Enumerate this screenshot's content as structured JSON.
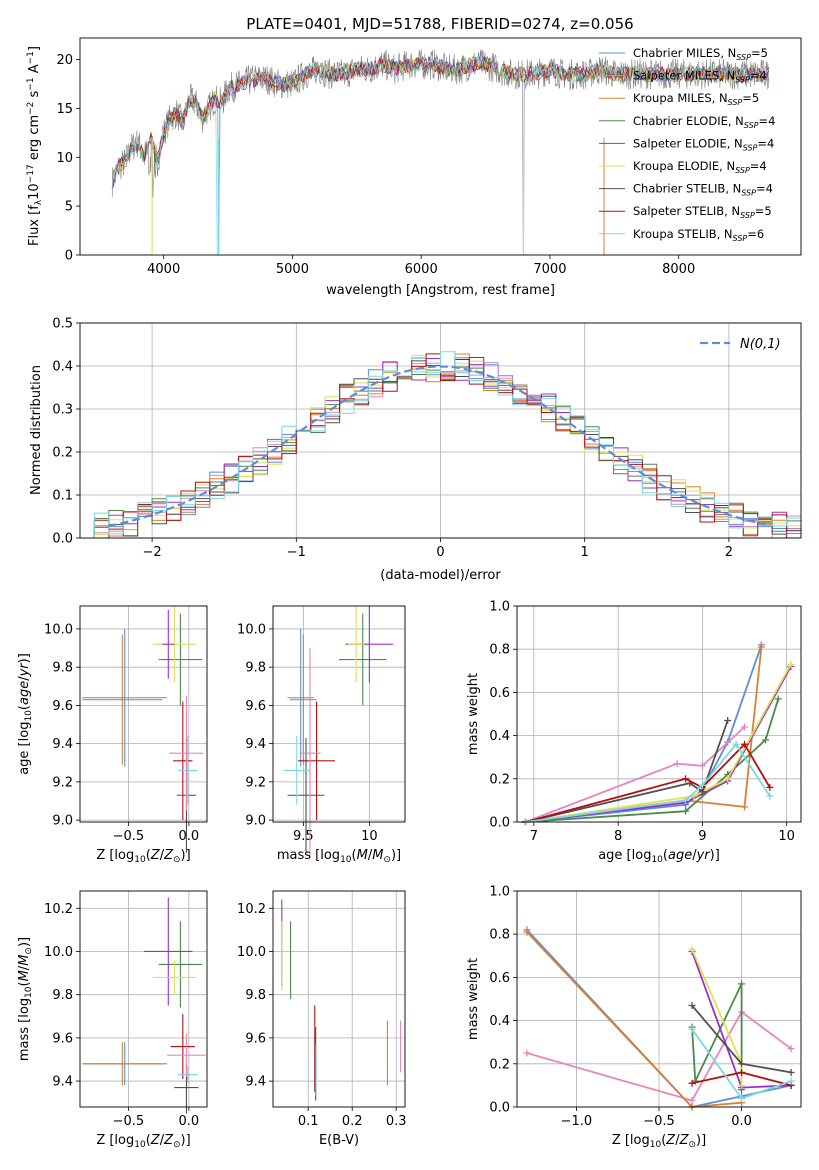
{
  "title": "PLATE=0401, MJD=51788, FIBERID=0274, z=0.056",
  "legend": [
    {
      "label": "Chabrier MILES, N",
      "sub": "SSP",
      "tail": "=5",
      "color": "#5a8fd8"
    },
    {
      "label": "Salpeter MILES, N",
      "sub": "SSP",
      "tail": "=4",
      "color": "#e387bf"
    },
    {
      "label": "Kroupa MILES, N",
      "sub": "SSP",
      "tail": "=5",
      "color": "#d98032"
    },
    {
      "label": "Chabrier ELODIE, N",
      "sub": "SSP",
      "tail": "=4",
      "color": "#4b8a4b"
    },
    {
      "label": "Salpeter ELODIE, N",
      "sub": "SSP",
      "tail": "=4",
      "color": "#9b30c8"
    },
    {
      "label": "Kroupa ELODIE, N",
      "sub": "SSP",
      "tail": "=4",
      "color": "#e0e050"
    },
    {
      "label": "Chabrier STELIB, N",
      "sub": "SSP",
      "tail": "=4",
      "color": "#505050"
    },
    {
      "label": "Salpeter STELIB, N",
      "sub": "SSP",
      "tail": "=5",
      "color": "#b01010"
    },
    {
      "label": "Kroupa STELIB, N",
      "sub": "SSP",
      "tail": "=6",
      "color": "#7ad8e0"
    }
  ],
  "chart_data": [
    {
      "id": "spectrum",
      "type": "line",
      "xlabel": "wavelength [Angstrom, rest frame]",
      "ylabel_parts": [
        "Flux [f",
        "λ",
        "10",
        "−17",
        " erg cm",
        "−2",
        " s",
        "−1",
        " A",
        "−1",
        "]"
      ],
      "xlim": [
        3350,
        8950
      ],
      "ylim": [
        0,
        22.2
      ],
      "xticks": [
        4000,
        5000,
        6000,
        7000,
        8000
      ],
      "yticks": [
        0,
        5,
        10,
        15,
        20
      ],
      "data_color": "#808080",
      "x": [
        3600,
        3650,
        3700,
        3750,
        3800,
        3850,
        3900,
        3950,
        4000,
        4050,
        4100,
        4150,
        4200,
        4250,
        4300,
        4350,
        4400,
        4450,
        4500,
        4600,
        4700,
        4800,
        4900,
        5000,
        5100,
        5200,
        5300,
        5400,
        5500,
        5600,
        5700,
        5800,
        5900,
        6000,
        6100,
        6200,
        6300,
        6400,
        6500,
        6600,
        6700,
        6800,
        6900,
        7000,
        7100,
        7200,
        7300,
        7400,
        7500,
        7600,
        7700,
        7800,
        7900,
        8000,
        8100,
        8200,
        8300,
        8400,
        8500,
        8600,
        8700
      ],
      "y": [
        7.5,
        9,
        9.5,
        11,
        11.5,
        10,
        12,
        9.5,
        12.5,
        14,
        14.5,
        13.5,
        16,
        15.5,
        14,
        15,
        16,
        15.5,
        17,
        17.5,
        18,
        18,
        17.5,
        17.5,
        18.5,
        19,
        18.5,
        18.5,
        19,
        19,
        19.5,
        19,
        19.5,
        19.5,
        19.5,
        19,
        19,
        19.5,
        19.5,
        19,
        18.5,
        18.5,
        18.5,
        19,
        18.5,
        18.5,
        18.5,
        19,
        18.5,
        18.5,
        18.5,
        18.5,
        18.5,
        18.5,
        18.5,
        18.5,
        18.5,
        18.5,
        18.5,
        18.5,
        18.5
      ]
    },
    {
      "id": "residual-histogram",
      "type": "bar",
      "xlabel": "(data-model)/error",
      "ylabel": "Normed distribution",
      "xlim": [
        -2.5,
        2.5
      ],
      "ylim": [
        0,
        0.5
      ],
      "xticks": [
        -2,
        -1,
        0,
        1,
        2
      ],
      "xtick_labels": [
        "−2",
        "−1",
        "0",
        "1",
        "2"
      ],
      "yticks": [
        0,
        0.1,
        0.2,
        0.3,
        0.4,
        0.5
      ],
      "ytick_labels": [
        "0.0",
        "0.1",
        "0.2",
        "0.3",
        "0.4",
        "0.5"
      ],
      "bin_width": 0.1,
      "bins_start": -2.5,
      "reference_curve": {
        "label": "N(0,1)",
        "sigma": 1,
        "color": "#5a8fd8"
      }
    },
    {
      "id": "age-vs-Z",
      "type": "scatter",
      "xlabel": "Z [log10(Z/Z⊙)]",
      "ylabel": "age [log10(age/yr)]",
      "xlim": [
        -0.9,
        0.15
      ],
      "ylim": [
        8.99,
        10.12
      ],
      "xticks": [
        -0.5,
        0.0
      ],
      "xtick_labels": [
        "−0.5",
        "0.0"
      ],
      "yticks": [
        9.0,
        9.2,
        9.4,
        9.6,
        9.8,
        10.0
      ],
      "points": [
        {
          "x": -0.53,
          "y": 9.64,
          "xe": 0.35,
          "ye": 0.36,
          "c": 0
        },
        {
          "x": -0.55,
          "y": 9.63,
          "xe": 0.33,
          "ye": 0.34,
          "c": 2
        },
        {
          "x": -0.07,
          "y": 9.84,
          "xe": 0.18,
          "ye": 0.24,
          "c": 3
        },
        {
          "x": -0.12,
          "y": 9.92,
          "xe": 0.18,
          "ye": 0.2,
          "c": 5
        },
        {
          "x": -0.17,
          "y": 9.92,
          "xe": 0.05,
          "ye": 0.18,
          "c": 4
        },
        {
          "x": -0.05,
          "y": 9.31,
          "xe": 0.08,
          "ye": 0.31,
          "c": 7
        },
        {
          "x": -0.02,
          "y": 9.13,
          "xe": 0.08,
          "ye": 0.3,
          "c": 6
        },
        {
          "x": -0.01,
          "y": 9.26,
          "xe": 0.08,
          "ye": 0.18,
          "c": 8
        },
        {
          "x": -0.02,
          "y": 9.35,
          "xe": 0.14,
          "ye": 0.3,
          "c": 1
        }
      ]
    },
    {
      "id": "age-vs-mass",
      "type": "scatter",
      "xlabel": "mass [log10(M/M⊙)]",
      "ylabel": "",
      "xlim": [
        9.27,
        10.27
      ],
      "ylim": [
        8.99,
        10.12
      ],
      "xticks": [
        9.5,
        10.0
      ],
      "yticks": [
        9.0,
        9.2,
        9.4,
        9.6,
        9.8,
        10.0
      ],
      "points": [
        {
          "x": 9.48,
          "y": 9.64,
          "xe": 0.1,
          "ye": 0.36,
          "c": 0
        },
        {
          "x": 9.5,
          "y": 9.63,
          "xe": 0.1,
          "ye": 0.34,
          "c": 2
        },
        {
          "x": 9.95,
          "y": 9.84,
          "xe": 0.18,
          "ye": 0.24,
          "c": 3
        },
        {
          "x": 10.0,
          "y": 9.92,
          "xe": 0.18,
          "ye": 0.2,
          "c": 4
        },
        {
          "x": 9.9,
          "y": 9.92,
          "xe": 0.06,
          "ye": 0.2,
          "c": 5
        },
        {
          "x": 9.52,
          "y": 9.13,
          "xe": 0.14,
          "ye": 0.3,
          "c": 6
        },
        {
          "x": 9.6,
          "y": 9.31,
          "xe": 0.14,
          "ye": 0.31,
          "c": 7
        },
        {
          "x": 9.45,
          "y": 9.26,
          "xe": 0.1,
          "ye": 0.18,
          "c": 8
        },
        {
          "x": 9.55,
          "y": 9.35,
          "xe": 0.08,
          "ye": 0.55,
          "c": 1
        }
      ]
    },
    {
      "id": "weight-vs-age",
      "type": "line",
      "xlabel": "age [log10(age/yr)]",
      "ylabel": "mass weight",
      "xlim": [
        6.8,
        10.17
      ],
      "ylim": [
        0,
        1.0
      ],
      "xticks": [
        7,
        8,
        9,
        10
      ],
      "yticks": [
        0.0,
        0.2,
        0.4,
        0.6,
        0.8,
        1.0
      ],
      "series": [
        {
          "c": 0,
          "x": [
            6.9,
            8.8,
            9.0,
            9.3,
            9.7
          ],
          "y": [
            0.0,
            0.08,
            0.15,
            0.37,
            0.82
          ]
        },
        {
          "c": 1,
          "x": [
            6.9,
            8.7,
            9.0,
            9.5
          ],
          "y": [
            0.0,
            0.27,
            0.26,
            0.44
          ]
        },
        {
          "c": 2,
          "x": [
            6.9,
            8.8,
            9.5,
            9.7
          ],
          "y": [
            0.0,
            0.1,
            0.07,
            0.81
          ]
        },
        {
          "c": 3,
          "x": [
            6.9,
            8.8,
            9.3,
            9.75,
            9.9
          ],
          "y": [
            0.0,
            0.05,
            0.22,
            0.38,
            0.57
          ]
        },
        {
          "c": 4,
          "x": [
            6.9,
            8.8,
            9.3,
            10.05
          ],
          "y": [
            0.0,
            0.09,
            0.19,
            0.72
          ]
        },
        {
          "c": 5,
          "x": [
            6.9,
            8.9,
            9.3,
            10.05
          ],
          "y": [
            0.0,
            0.12,
            0.2,
            0.73
          ]
        },
        {
          "c": 6,
          "x": [
            6.9,
            8.85,
            9.0,
            9.3
          ],
          "y": [
            0.0,
            0.18,
            0.14,
            0.47
          ]
        },
        {
          "c": 7,
          "x": [
            6.9,
            8.8,
            9.0,
            9.5,
            9.8
          ],
          "y": [
            0.0,
            0.2,
            0.16,
            0.36,
            0.16
          ]
        },
        {
          "c": 8,
          "x": [
            6.9,
            8.8,
            9.0,
            9.4,
            9.8
          ],
          "y": [
            0.0,
            0.1,
            0.17,
            0.36,
            0.12
          ]
        }
      ]
    },
    {
      "id": "mass-vs-Z",
      "type": "scatter",
      "xlabel": "Z [log10(Z/Z⊙)]",
      "ylabel": "mass [log10(M/M⊙)]",
      "xlim": [
        -0.9,
        0.15
      ],
      "ylim": [
        9.28,
        10.28
      ],
      "xticks": [
        -0.5,
        0.0
      ],
      "xtick_labels": [
        "−0.5",
        "0.0"
      ],
      "yticks": [
        9.4,
        9.6,
        9.8,
        10.0,
        10.2
      ],
      "points": [
        {
          "x": -0.53,
          "y": 9.48,
          "xe": 0.35,
          "ye": 0.1,
          "c": 0
        },
        {
          "x": -0.55,
          "y": 9.48,
          "xe": 0.33,
          "ye": 0.1,
          "c": 2
        },
        {
          "x": -0.07,
          "y": 9.94,
          "xe": 0.18,
          "ye": 0.2,
          "c": 3
        },
        {
          "x": -0.17,
          "y": 10.0,
          "xe": 0.2,
          "ye": 0.25,
          "c": 4
        },
        {
          "x": -0.12,
          "y": 9.88,
          "xe": 0.18,
          "ye": 0.08,
          "c": 5
        },
        {
          "x": -0.02,
          "y": 9.37,
          "xe": 0.1,
          "ye": 0.12,
          "c": 6
        },
        {
          "x": -0.05,
          "y": 9.56,
          "xe": 0.1,
          "ye": 0.15,
          "c": 7
        },
        {
          "x": -0.01,
          "y": 9.43,
          "xe": 0.08,
          "ye": 0.04,
          "c": 8
        },
        {
          "x": -0.02,
          "y": 9.52,
          "xe": 0.16,
          "ye": 0.1,
          "c": 1
        }
      ]
    },
    {
      "id": "mass-vs-ebv",
      "type": "scatter",
      "xlabel": "E(B-V)",
      "ylabel": "",
      "xlim": [
        0.02,
        0.32
      ],
      "ylim": [
        9.28,
        10.28
      ],
      "xticks": [
        0.1,
        0.2,
        0.3
      ],
      "yticks": [
        9.4,
        9.6,
        9.8,
        10.0,
        10.2
      ],
      "points": [
        {
          "x": 0.04,
          "y": 10.04,
          "xe": 0,
          "ye": 0.2,
          "c": 4
        },
        {
          "x": 0.04,
          "y": 9.98,
          "xe": 0,
          "ye": 0.16,
          "c": 5
        },
        {
          "x": 0.06,
          "y": 9.96,
          "xe": 0,
          "ye": 0.18,
          "c": 3
        },
        {
          "x": 0.115,
          "y": 9.55,
          "xe": 0,
          "ye": 0.2,
          "c": 7
        },
        {
          "x": 0.117,
          "y": 9.48,
          "xe": 0,
          "ye": 0.17,
          "c": 6
        },
        {
          "x": 0.118,
          "y": 9.45,
          "xe": 0,
          "ye": 0.12,
          "c": 8
        },
        {
          "x": 0.28,
          "y": 9.53,
          "xe": 0,
          "ye": 0.15,
          "c": 2
        },
        {
          "x": 0.31,
          "y": 9.56,
          "xe": 0,
          "ye": 0.12,
          "c": 1
        }
      ]
    },
    {
      "id": "weight-vs-Z",
      "type": "line",
      "xlabel": "Z [log10(Z/Z⊙)]",
      "ylabel": "mass weight",
      "xlim": [
        -1.36,
        0.36
      ],
      "ylim": [
        0,
        1.0
      ],
      "xticks": [
        -1.0,
        -0.5,
        0.0
      ],
      "xtick_labels": [
        "−1.0",
        "−0.5",
        "0.0"
      ],
      "yticks": [
        0.0,
        0.2,
        0.4,
        0.6,
        0.8,
        1.0
      ],
      "series": [
        {
          "c": 0,
          "x": [
            -1.3,
            -0.3,
            0.0,
            0.3
          ],
          "y": [
            0.82,
            0.0,
            0.05,
            0.1
          ]
        },
        {
          "c": 1,
          "x": [
            -1.3,
            -0.3,
            0.0,
            0.3
          ],
          "y": [
            0.25,
            0.03,
            0.44,
            0.27
          ]
        },
        {
          "c": 2,
          "x": [
            -1.3,
            -0.3,
            0.0
          ],
          "y": [
            0.81,
            0.0,
            0.02
          ]
        },
        {
          "c": 3,
          "x": [
            -0.3,
            -0.28,
            0.0,
            0.0
          ],
          "y": [
            0.37,
            0.12,
            0.57,
            0.08
          ]
        },
        {
          "c": 4,
          "x": [
            -0.3,
            0.0,
            0.3
          ],
          "y": [
            0.72,
            0.09,
            0.1
          ]
        },
        {
          "c": 5,
          "x": [
            -0.3,
            0.0,
            0.0
          ],
          "y": [
            0.73,
            0.2,
            0.1
          ]
        },
        {
          "c": 6,
          "x": [
            -0.3,
            0.0,
            0.3
          ],
          "y": [
            0.47,
            0.2,
            0.16
          ]
        },
        {
          "c": 7,
          "x": [
            -0.3,
            0.0,
            0.3
          ],
          "y": [
            0.11,
            0.16,
            0.1
          ]
        },
        {
          "c": 8,
          "x": [
            -0.3,
            0.0,
            0.3
          ],
          "y": [
            0.36,
            0.04,
            0.12
          ]
        }
      ]
    }
  ]
}
